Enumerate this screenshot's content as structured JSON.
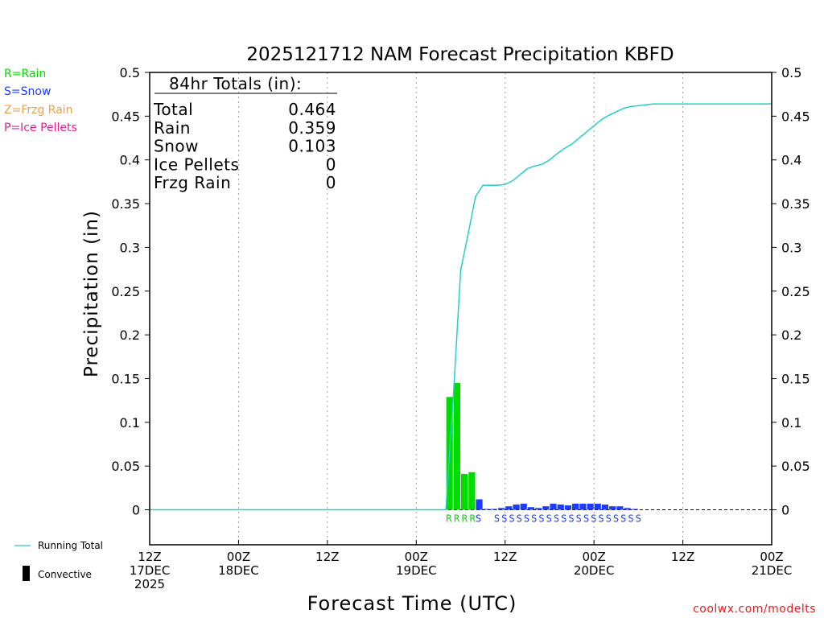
{
  "chart_data": {
    "type": "bar",
    "title": "2025121712 NAM Forecast Precipitation KBFD",
    "xlabel": "Forecast Time (UTC)",
    "ylabel": "Precipitation (in)",
    "ylim": [
      -0.04,
      0.5
    ],
    "xlim_hours": [
      0,
      84
    ],
    "y_ticks": [
      {
        "value": 0.5,
        "label": "0.5"
      },
      {
        "value": 0.45,
        "label": "0.45"
      },
      {
        "value": 0.4,
        "label": "0.4"
      },
      {
        "value": 0.35,
        "label": "0.35"
      },
      {
        "value": 0.3,
        "label": "0.3"
      },
      {
        "value": 0.25,
        "label": "0.25"
      },
      {
        "value": 0.2,
        "label": "0.2"
      },
      {
        "value": 0.15,
        "label": "0.15"
      },
      {
        "value": 0.1,
        "label": "0.1"
      },
      {
        "value": 0.05,
        "label": "0.05"
      },
      {
        "value": 0,
        "label": "0"
      }
    ],
    "x_ticks": [
      {
        "hour": 0,
        "line1": "12Z",
        "line2": "17DEC",
        "line3": "2025"
      },
      {
        "hour": 12,
        "line1": "00Z",
        "line2": "18DEC",
        "line3": ""
      },
      {
        "hour": 24,
        "line1": "12Z",
        "line2": "",
        "line3": ""
      },
      {
        "hour": 36,
        "line1": "00Z",
        "line2": "19DEC",
        "line3": ""
      },
      {
        "hour": 48,
        "line1": "12Z",
        "line2": "",
        "line3": ""
      },
      {
        "hour": 60,
        "line1": "00Z",
        "line2": "20DEC",
        "line3": ""
      },
      {
        "hour": 72,
        "line1": "12Z",
        "line2": "",
        "line3": ""
      },
      {
        "hour": 84,
        "line1": "00Z",
        "line2": "21DEC",
        "line3": ""
      }
    ],
    "colors": {
      "rain": "#00dc00",
      "snow": "#1e3cff",
      "frzg_rain": "#f0a040",
      "ice_pellets": "#e61e8c",
      "running_total": "#20d0c8",
      "grid": "#a0a0a0"
    },
    "bars": [
      {
        "hour": 41,
        "value": 0.129,
        "type": "rain"
      },
      {
        "hour": 42,
        "value": 0.145,
        "type": "rain"
      },
      {
        "hour": 43,
        "value": 0.041,
        "type": "rain"
      },
      {
        "hour": 44,
        "value": 0.043,
        "type": "rain"
      },
      {
        "hour": 45,
        "value": 0.012,
        "type": "snow"
      },
      {
        "hour": 46,
        "value": 0.001,
        "type": "snow"
      },
      {
        "hour": 47,
        "value": 0.001,
        "type": "snow"
      },
      {
        "hour": 48,
        "value": 0.002,
        "type": "snow"
      },
      {
        "hour": 49,
        "value": 0.004,
        "type": "snow"
      },
      {
        "hour": 50,
        "value": 0.006,
        "type": "snow"
      },
      {
        "hour": 51,
        "value": 0.007,
        "type": "snow"
      },
      {
        "hour": 52,
        "value": 0.003,
        "type": "snow"
      },
      {
        "hour": 53,
        "value": 0.002,
        "type": "snow"
      },
      {
        "hour": 54,
        "value": 0.004,
        "type": "snow"
      },
      {
        "hour": 55,
        "value": 0.007,
        "type": "snow"
      },
      {
        "hour": 56,
        "value": 0.006,
        "type": "snow"
      },
      {
        "hour": 57,
        "value": 0.005,
        "type": "snow"
      },
      {
        "hour": 58,
        "value": 0.007,
        "type": "snow"
      },
      {
        "hour": 59,
        "value": 0.007,
        "type": "snow"
      },
      {
        "hour": 60,
        "value": 0.007,
        "type": "snow"
      },
      {
        "hour": 61,
        "value": 0.007,
        "type": "snow"
      },
      {
        "hour": 62,
        "value": 0.006,
        "type": "snow"
      },
      {
        "hour": 63,
        "value": 0.004,
        "type": "snow"
      },
      {
        "hour": 64,
        "value": 0.004,
        "type": "snow"
      },
      {
        "hour": 65,
        "value": 0.002,
        "type": "snow"
      },
      {
        "hour": 66,
        "value": 0.001,
        "type": "snow"
      }
    ],
    "running_total": [
      {
        "hour": 0,
        "value": 0
      },
      {
        "hour": 40,
        "value": 0
      },
      {
        "hour": 41,
        "value": 0.129
      },
      {
        "hour": 42,
        "value": 0.274
      },
      {
        "hour": 43,
        "value": 0.315
      },
      {
        "hour": 44,
        "value": 0.358
      },
      {
        "hour": 45,
        "value": 0.371
      },
      {
        "hour": 46,
        "value": 0.371
      },
      {
        "hour": 47,
        "value": 0.371
      },
      {
        "hour": 48,
        "value": 0.372
      },
      {
        "hour": 49,
        "value": 0.376
      },
      {
        "hour": 50,
        "value": 0.383
      },
      {
        "hour": 51,
        "value": 0.39
      },
      {
        "hour": 52,
        "value": 0.393
      },
      {
        "hour": 53,
        "value": 0.395
      },
      {
        "hour": 54,
        "value": 0.4
      },
      {
        "hour": 55,
        "value": 0.407
      },
      {
        "hour": 56,
        "value": 0.413
      },
      {
        "hour": 57,
        "value": 0.418
      },
      {
        "hour": 58,
        "value": 0.425
      },
      {
        "hour": 59,
        "value": 0.432
      },
      {
        "hour": 60,
        "value": 0.439
      },
      {
        "hour": 61,
        "value": 0.446
      },
      {
        "hour": 62,
        "value": 0.451
      },
      {
        "hour": 63,
        "value": 0.455
      },
      {
        "hour": 64,
        "value": 0.459
      },
      {
        "hour": 65,
        "value": 0.461
      },
      {
        "hour": 66,
        "value": 0.462
      },
      {
        "hour": 67,
        "value": 0.463
      },
      {
        "hour": 68,
        "value": 0.464
      },
      {
        "hour": 84,
        "value": 0.464
      }
    ],
    "ptype_row": {
      "rain_text": "RRRR",
      "rain_start_hour": 41,
      "snow_first": "S",
      "snow_text": "SSSSSSSSSSSSSSSSSSSS",
      "snow_start_hour": 46.5
    },
    "legend": {
      "rain": "R=Rain",
      "snow": "S=Snow",
      "frzg_rain": "Z=Frzg Rain",
      "ice_pellets": "P=Ice Pellets",
      "running_total": "Running Total",
      "convective": "Convective"
    },
    "totals": {
      "header": "84hr Totals (in):",
      "rows": [
        {
          "label": "Total",
          "value": "0.464"
        },
        {
          "label": "Rain",
          "value": "0.359"
        },
        {
          "label": "Snow",
          "value": "0.103"
        },
        {
          "label": "Ice Pellets",
          "value": "0"
        },
        {
          "label": "Frzg Rain",
          "value": "0"
        }
      ]
    },
    "credit": "coolwx.com/modelts"
  }
}
